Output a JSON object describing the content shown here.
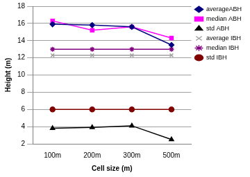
{
  "chart_data": {
    "type": "line",
    "x_label": "Cell size (m)",
    "y_label": "Height (m)",
    "categories": [
      "100m",
      "200m",
      "300m",
      "500m"
    ],
    "series": [
      {
        "name": "averageABH",
        "color": "#000080",
        "marker": "diamond",
        "line_style": "solid",
        "values": [
          15.9,
          15.8,
          15.6,
          13.5
        ]
      },
      {
        "name": "median ABH",
        "color": "#ff00ff",
        "marker": "square",
        "line_style": "solid",
        "values": [
          16.3,
          15.2,
          15.6,
          14.3
        ]
      },
      {
        "name": "std ABH",
        "color": "#000000",
        "marker": "triangle",
        "line_style": "solid",
        "values": [
          3.8,
          3.9,
          4.1,
          2.5
        ]
      },
      {
        "name": "average IBH",
        "color": "#a0a0a0",
        "marker": "x",
        "line_style": "solid",
        "values": [
          12.3,
          12.3,
          12.3,
          12.3
        ]
      },
      {
        "name": "median IBH",
        "color": "#800080",
        "marker": "star",
        "line_style": "solid",
        "values": [
          13.0,
          13.0,
          13.0,
          13.0
        ]
      },
      {
        "name": "std IBH",
        "color": "#800000",
        "marker": "circle",
        "line_style": "solid",
        "values": [
          6.0,
          6.0,
          6.0,
          6.0
        ]
      }
    ],
    "ylim": [
      2,
      18
    ],
    "yticks": [
      2,
      4,
      6,
      8,
      10,
      12,
      14,
      16,
      18
    ],
    "grid": true,
    "legend": "upper right"
  }
}
